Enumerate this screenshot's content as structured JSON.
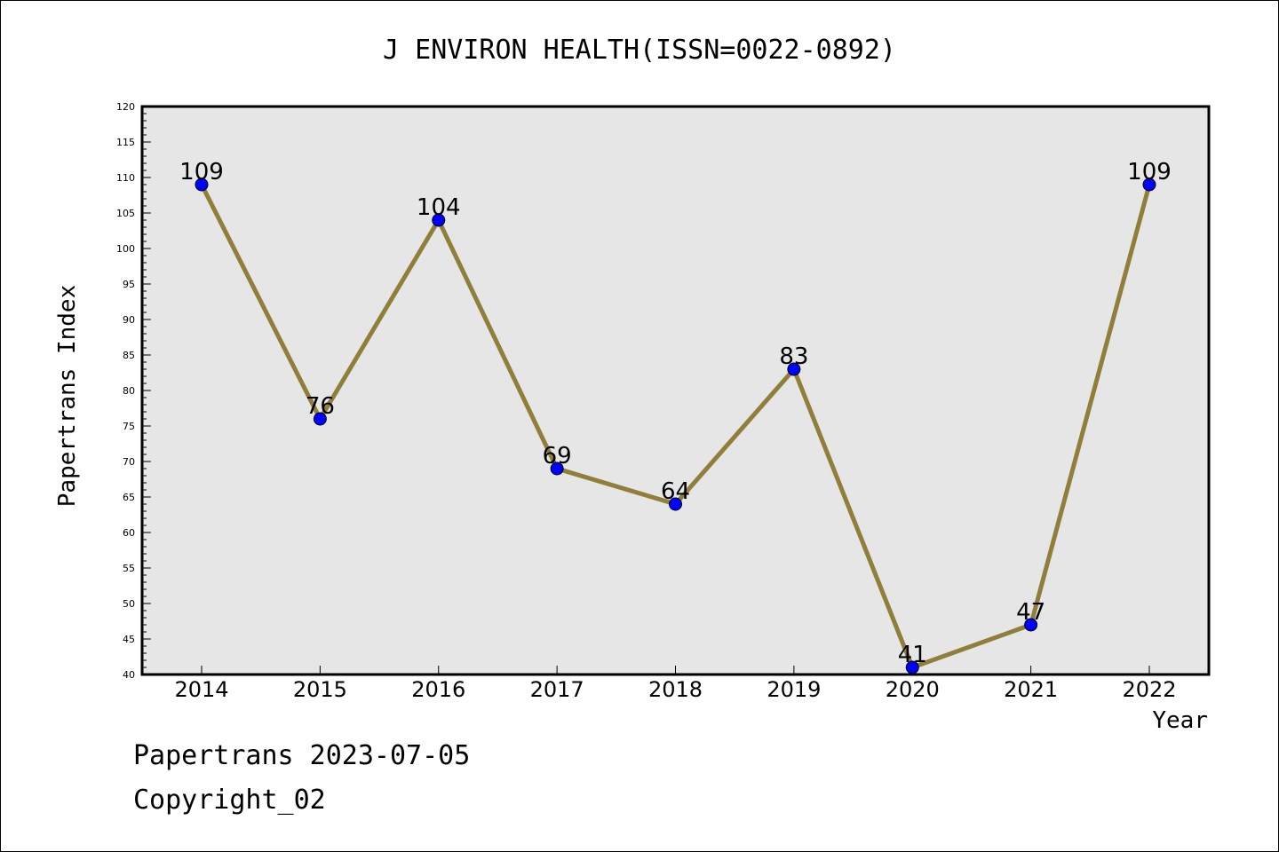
{
  "chart_data": {
    "type": "line",
    "title": "J ENVIRON HEALTH(ISSN=0022-0892)",
    "xlabel": "Year",
    "ylabel": "Papertrans Index",
    "categories": [
      "2014",
      "2015",
      "2016",
      "2017",
      "2018",
      "2019",
      "2020",
      "2021",
      "2022"
    ],
    "values": [
      109,
      76,
      104,
      69,
      64,
      83,
      41,
      47,
      109
    ],
    "ylim": [
      40,
      120
    ],
    "yticks": [
      40,
      45,
      50,
      55,
      60,
      65,
      70,
      75,
      80,
      85,
      90,
      95,
      100,
      105,
      110,
      115,
      120
    ],
    "line_color": "#8f7f3a",
    "marker_color": "#0000ff",
    "plot_background": "#e6e6e6",
    "grid": false,
    "legend": "none"
  },
  "footer": {
    "line1": "Papertrans 2023-07-05",
    "line2": "Copyright_02"
  }
}
